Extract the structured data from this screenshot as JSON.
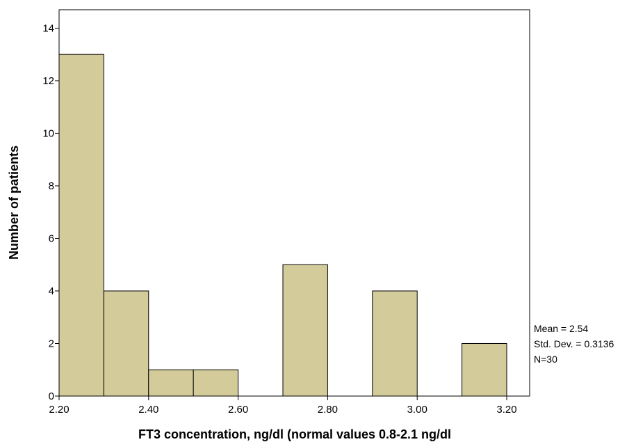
{
  "chart_data": {
    "type": "bar",
    "bins": [
      {
        "x0": 2.2,
        "x1": 2.3,
        "count": 13
      },
      {
        "x0": 2.3,
        "x1": 2.4,
        "count": 4
      },
      {
        "x0": 2.4,
        "x1": 2.5,
        "count": 1
      },
      {
        "x0": 2.5,
        "x1": 2.6,
        "count": 1
      },
      {
        "x0": 2.6,
        "x1": 2.7,
        "count": 0
      },
      {
        "x0": 2.7,
        "x1": 2.8,
        "count": 5
      },
      {
        "x0": 2.8,
        "x1": 2.9,
        "count": 0
      },
      {
        "x0": 2.9,
        "x1": 3.0,
        "count": 4
      },
      {
        "x0": 3.0,
        "x1": 3.1,
        "count": 0
      },
      {
        "x0": 3.1,
        "x1": 3.2,
        "count": 2
      }
    ],
    "xticks": [
      "2.20",
      "2.40",
      "2.60",
      "2.80",
      "3.00",
      "3.20"
    ],
    "yticks": [
      "0",
      "2",
      "4",
      "6",
      "8",
      "10",
      "12",
      "14"
    ],
    "xlabel": "FT3 concentration, ng/dl (normal values 0.8-2.1 ng/dl",
    "ylabel": "Number of patients",
    "xlim": [
      2.2,
      3.2
    ],
    "ylim": [
      0,
      14.7
    ],
    "grid": false,
    "bar_color": "#d3cc9a",
    "bar_edge_color": "#000000"
  },
  "stats": {
    "mean": "Mean = 2.54",
    "std": "Std. Dev. = 0.3136",
    "n": "N=30"
  }
}
